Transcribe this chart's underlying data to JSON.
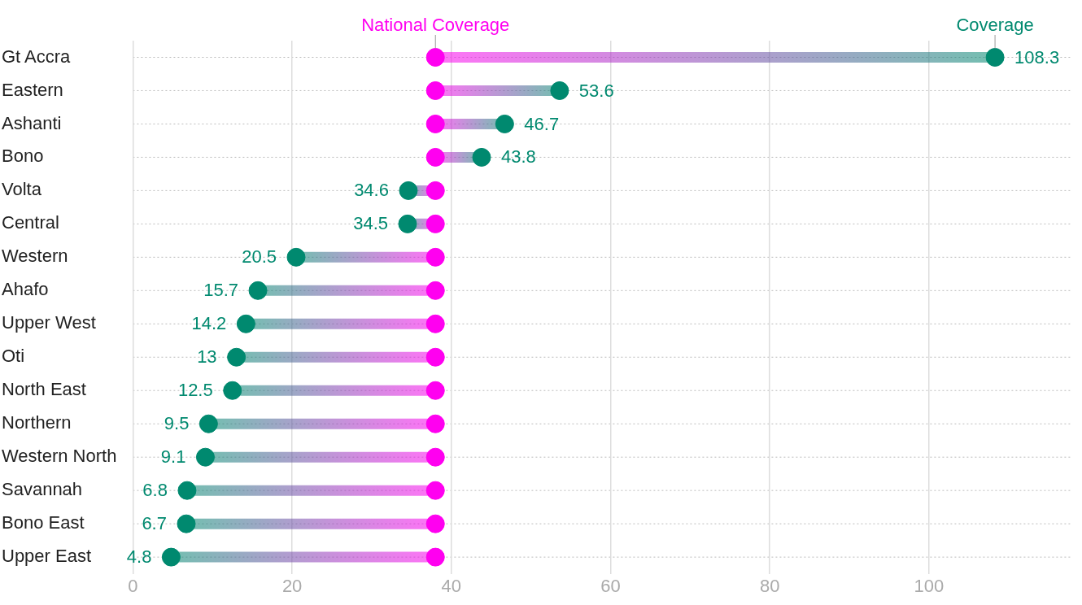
{
  "chart_data": {
    "type": "scatter",
    "orientation": "horizontal",
    "categories": [
      "Gt Accra",
      "Eastern",
      "Ashanti",
      "Bono",
      "Volta",
      "Central",
      "Western",
      "Ahafo",
      "Upper West",
      "Oti",
      "North East",
      "Northern",
      "Western North",
      "Savannah",
      "Bono East",
      "Upper East"
    ],
    "series": [
      {
        "name": "National Coverage",
        "color": "#ff00f0",
        "values": [
          38,
          38,
          38,
          38,
          38,
          38,
          38,
          38,
          38,
          38,
          38,
          38,
          38,
          38,
          38,
          38
        ]
      },
      {
        "name": "Coverage",
        "color": "#00896f",
        "values": [
          108.3,
          53.6,
          46.7,
          43.8,
          34.6,
          34.5,
          20.5,
          15.7,
          14.2,
          13,
          12.5,
          9.5,
          9.1,
          6.8,
          6.7,
          4.8
        ],
        "value_labels": [
          "108.3",
          "53.6",
          "46.7",
          "43.8",
          "34.6",
          "34.5",
          "20.5",
          "15.7",
          "14.2",
          "13",
          "12.5",
          "9.5",
          "9.1",
          "6.8",
          "6.7",
          "4.8"
        ]
      }
    ],
    "xlim": [
      0,
      118
    ],
    "xticks": [
      0,
      20,
      40,
      60,
      80,
      100
    ],
    "grid": true,
    "marker": "circle"
  }
}
